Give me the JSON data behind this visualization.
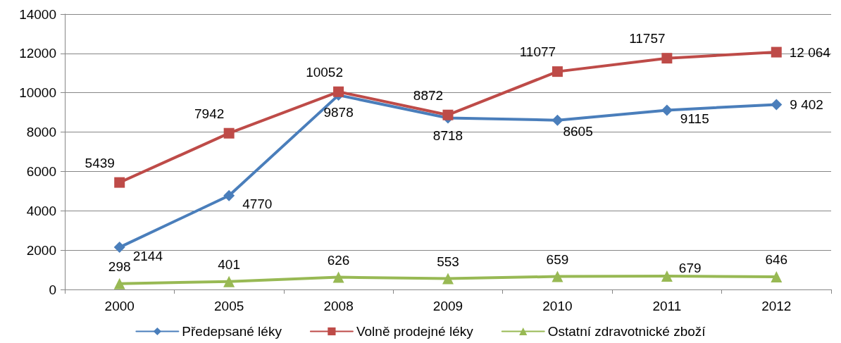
{
  "chart_data": {
    "type": "line",
    "categories": [
      "2000",
      "2005",
      "2008",
      "2009",
      "2010",
      "2011",
      "2012"
    ],
    "series": [
      {
        "name": "Předepsané léky",
        "color": "#4a7ebb",
        "marker": "diamond",
        "values": [
          2144,
          4770,
          9878,
          8718,
          8605,
          9115,
          9402
        ],
        "value_labels": [
          "2144",
          "4770",
          "9878",
          "8718",
          "8605",
          "9115",
          "9 402"
        ]
      },
      {
        "name": "Volně prodejné léky",
        "color": "#be4b48",
        "marker": "square",
        "values": [
          5439,
          7942,
          10052,
          8872,
          11077,
          11757,
          12064
        ],
        "value_labels": [
          "5439",
          "7942",
          "10052",
          "8872",
          "11077",
          "11757",
          "12 064"
        ]
      },
      {
        "name": "Ostatní zdravotnické zboží",
        "color": "#98b954",
        "marker": "triangle",
        "values": [
          298,
          401,
          626,
          553,
          659,
          679,
          646
        ],
        "value_labels": [
          "298",
          "401",
          "626",
          "553",
          "659",
          "679",
          "646"
        ]
      }
    ],
    "ylim": [
      0,
      14000
    ],
    "yticks": [
      0,
      2000,
      4000,
      6000,
      8000,
      10000,
      12000,
      14000
    ],
    "grid": "y",
    "legend": "bottom",
    "line_style": "solid"
  }
}
